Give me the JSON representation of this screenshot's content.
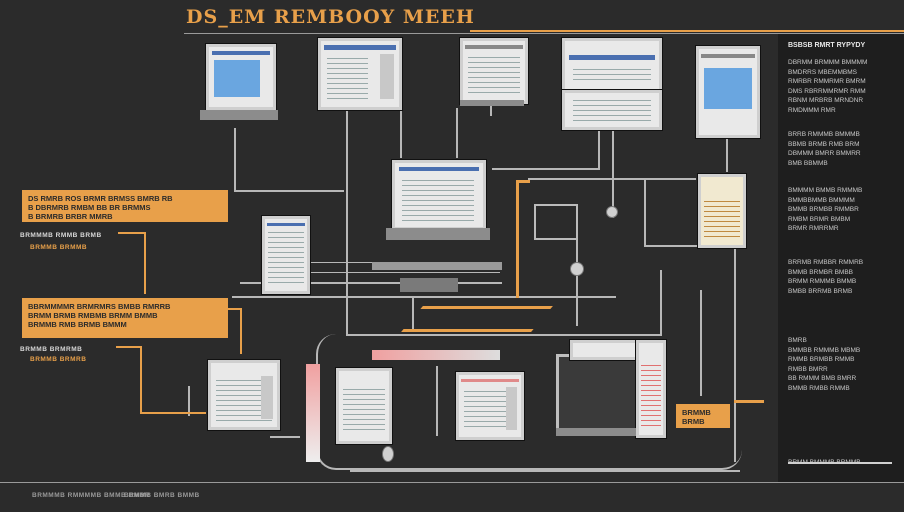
{
  "title": "DS_EM REMBOOY MEEH",
  "right_panel": {
    "heading": "BSBSB RMRT RYPYDY",
    "blocks": [
      "DBRMM BRMMM BMMMM\nBMDRRS MBEMMBMS\nRMRBR RMMRMR BMRM\nDMS RBRRMMRMR RMM\nRBNM MRBRB MRNDNR\nRMDMMM RMR",
      "BRRB RMMMB BMMMB\nBBMB BRMB RMB BRM\nDBMMM BMRR BMMRR\nBMB BBMMB",
      "BMMMM BMMB RMMMB\nBMMBBMMB BMMMM\nBMMB BRMBB RMMBR\nRMBM BRMR BMBM\nBRMR RMRRMR",
      "BRRMB RMBBR RMMRB\nBMMB BRMBR BMBB\nBRMM RMMMB BMMB\nBMBB BRRMB BRMB",
      "BMRB\nBMMBB RMMMB MBMB\nRMMB BRMBB RMMB\nRMBB BMRR\nBB RMMM BMB BMRR\nBMMB RMBB RMMB",
      "BRMM BMMMB BRMMB"
    ]
  },
  "orange_notes": [
    "DS RMRB ROS BRMR BRMSS BMRB RB\nB DBRMRB RMBM BB BR BRMMS\nB BRMRB BRBR MMRB",
    "BBRMMMMR BRMRMRS BMBB RMRRB\nBRMM BRMB RMBMB BRMM BMMB\nBRMMB RMB BRMB BMMM",
    "BRMMB\nBRMB"
  ],
  "left_labels": [
    "BRMMMB RMMB BRMB",
    "BRMMB BRMMB",
    "BRMMB BRMRMB",
    "BRMMB BRMRB"
  ],
  "footer_left": "BRMMMB RMMMMB BMMB BMBR",
  "footer_right": "BRMMB BMRB BMMB"
}
